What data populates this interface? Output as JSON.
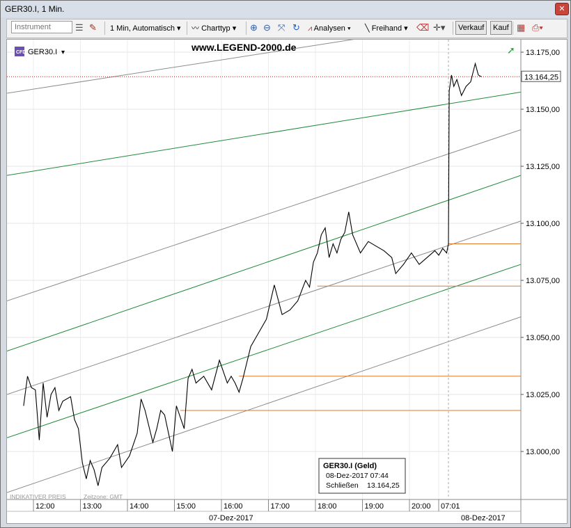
{
  "window": {
    "title": "GER30.I, 1 Min.",
    "close_glyph": "✕"
  },
  "toolbar": {
    "instrument_placeholder": "Instrument",
    "interval": "1 Min,",
    "interval_mode": "Automatisch",
    "charttype": "Charttyp",
    "analysen": "Analysen",
    "freihand": "Freihand",
    "sell": "Verkauf",
    "buy": "Kauf"
  },
  "chart": {
    "symbol": "GER30.I",
    "watermark": "www.LEGEND-2000.de",
    "indicative": "INDIKATIVER PREIS",
    "timezone": "Zeitzone: GMT",
    "current_price": "13.164,25",
    "tooltip": {
      "title": "GER30.I (Geld)",
      "datetime": "08-Dez-2017 07:44",
      "close_label": "Schließen",
      "close_value": "13.164,25"
    },
    "date_labels": [
      "07-Dez-2017",
      "08-Dez-2017"
    ],
    "colors": {
      "price_line": "#000000",
      "channel_green": "#1f8a3a",
      "channel_grey": "#8c8c8c",
      "level_orange": "#e07a2c",
      "current_dotted": "#b02020"
    }
  },
  "chart_data": {
    "type": "line",
    "title": "",
    "series_name": "",
    "y_ticks": [
      "13.175,00",
      "13.150,00",
      "13.125,00",
      "13.100,00",
      "13.075,00",
      "13.050,00",
      "13.025,00",
      "13.000,00"
    ],
    "y_tick_values": [
      13175,
      13150,
      13125,
      13100,
      13075,
      13050,
      13025,
      13000
    ],
    "x_ticks": [
      "12:00",
      "13:00",
      "14:00",
      "15:00",
      "16:00",
      "17:00",
      "18:00",
      "19:00",
      "20:00",
      "07:01"
    ],
    "ylim": [
      12980,
      13185
    ],
    "gap_marker_after": "20:00",
    "price_path": [
      [
        "11:35",
        13020
      ],
      [
        "11:40",
        13033
      ],
      [
        "11:45",
        13028
      ],
      [
        "11:50",
        13027
      ],
      [
        "11:55",
        13005
      ],
      [
        "12:00",
        13030
      ],
      [
        "12:05",
        13015
      ],
      [
        "12:10",
        13025
      ],
      [
        "12:15",
        13028
      ],
      [
        "12:20",
        13018
      ],
      [
        "12:25",
        13022
      ],
      [
        "12:35",
        13024
      ],
      [
        "12:40",
        13014
      ],
      [
        "12:45",
        13010
      ],
      [
        "12:50",
        12995
      ],
      [
        "12:55",
        12988
      ],
      [
        "13:00",
        12996
      ],
      [
        "13:05",
        12992
      ],
      [
        "13:10",
        12985
      ],
      [
        "13:15",
        12993
      ],
      [
        "13:25",
        12997
      ],
      [
        "13:35",
        13003
      ],
      [
        "13:40",
        12993
      ],
      [
        "13:50",
        12998
      ],
      [
        "14:00",
        13008
      ],
      [
        "14:05",
        13023
      ],
      [
        "14:10",
        13018
      ],
      [
        "14:20",
        13004
      ],
      [
        "14:25",
        13010
      ],
      [
        "14:30",
        13018
      ],
      [
        "14:35",
        13016
      ],
      [
        "14:40",
        13008
      ],
      [
        "14:45",
        13000
      ],
      [
        "14:50",
        13020
      ],
      [
        "14:55",
        13015
      ],
      [
        "15:00",
        13010
      ],
      [
        "15:05",
        13032
      ],
      [
        "15:10",
        13036
      ],
      [
        "15:15",
        13030
      ],
      [
        "15:25",
        13033
      ],
      [
        "15:35",
        13027
      ],
      [
        "15:45",
        13040
      ],
      [
        "15:55",
        13030
      ],
      [
        "16:00",
        13033
      ],
      [
        "16:05",
        13030
      ],
      [
        "16:10",
        13026
      ],
      [
        "16:15",
        13032
      ],
      [
        "16:25",
        13046
      ],
      [
        "16:35",
        13052
      ],
      [
        "16:45",
        13058
      ],
      [
        "16:55",
        13073
      ],
      [
        "17:05",
        13060
      ],
      [
        "17:15",
        13062
      ],
      [
        "17:25",
        13066
      ],
      [
        "17:35",
        13075
      ],
      [
        "17:40",
        13072
      ],
      [
        "17:45",
        13083
      ],
      [
        "17:50",
        13087
      ],
      [
        "17:55",
        13095
      ],
      [
        "18:00",
        13098
      ],
      [
        "18:05",
        13085
      ],
      [
        "18:10",
        13091
      ],
      [
        "18:15",
        13087
      ],
      [
        "18:20",
        13093
      ],
      [
        "18:25",
        13096
      ],
      [
        "18:30",
        13105
      ],
      [
        "18:35",
        13095
      ],
      [
        "18:45",
        13087
      ],
      [
        "18:55",
        13092
      ],
      [
        "19:05",
        13090
      ],
      [
        "19:15",
        13088
      ],
      [
        "19:25",
        13085
      ],
      [
        "19:30",
        13078
      ],
      [
        "19:40",
        13082
      ],
      [
        "19:50",
        13087
      ],
      [
        "20:00",
        13082
      ],
      [
        "20:10",
        13085
      ],
      [
        "20:20",
        13088
      ],
      [
        "20:25",
        13086
      ],
      [
        "20:30",
        13089
      ],
      [
        "20:35",
        13087
      ],
      [
        "07:01",
        13091
      ],
      [
        "07:02",
        13158
      ],
      [
        "07:05",
        13165
      ],
      [
        "07:08",
        13160
      ],
      [
        "07:12",
        13163
      ],
      [
        "07:18",
        13156
      ],
      [
        "07:24",
        13160
      ],
      [
        "07:30",
        13162
      ],
      [
        "07:36",
        13170
      ],
      [
        "07:40",
        13165
      ],
      [
        "07:44",
        13164.25
      ]
    ],
    "horizontal_levels": [
      {
        "value": 13091,
        "from": "07:01"
      },
      {
        "value": 13072.5,
        "from": "17:50"
      },
      {
        "value": 13033,
        "from": "16:10"
      },
      {
        "value": 13018,
        "from": "14:55"
      }
    ],
    "trend_lines": [
      {
        "color": "green",
        "left_value": 13121,
        "right_value": 13157.5
      },
      {
        "color": "green",
        "left_value": 13044,
        "right_value": 13121
      },
      {
        "color": "green",
        "left_value": 13006,
        "right_value": 13082
      },
      {
        "color": "grey",
        "left_value": 13157,
        "right_value": 13192
      },
      {
        "color": "grey",
        "left_value": 13066,
        "right_value": 13141
      },
      {
        "color": "grey",
        "left_value": 13025,
        "right_value": 13101
      },
      {
        "color": "grey",
        "left_value": 12982,
        "right_value": 13059
      }
    ],
    "current_value": 13164.25
  }
}
